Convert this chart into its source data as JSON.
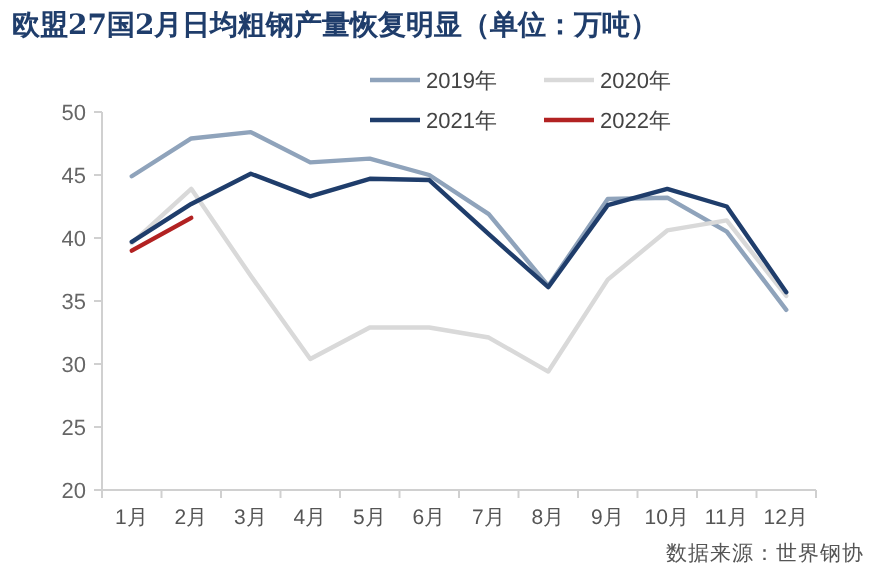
{
  "chart_data": {
    "type": "line",
    "title": "欧盟27国2月日均粗钢产量恢复明显（单位：万吨）",
    "categories": [
      "1月",
      "2月",
      "3月",
      "4月",
      "5月",
      "6月",
      "7月",
      "8月",
      "9月",
      "10月",
      "11月",
      "12月"
    ],
    "series": [
      {
        "name": "2019年",
        "color": "#8fa3bb",
        "values": [
          44.9,
          47.9,
          48.4,
          46.0,
          46.3,
          45.0,
          41.9,
          36.2,
          43.1,
          43.2,
          40.5,
          34.3
        ]
      },
      {
        "name": "2020年",
        "color": "#d9d9d9",
        "values": [
          39.6,
          43.9,
          37.0,
          30.4,
          32.9,
          32.9,
          32.1,
          29.4,
          36.7,
          40.6,
          41.4,
          35.4
        ]
      },
      {
        "name": "2021年",
        "color": "#1f3d6b",
        "values": [
          39.7,
          42.7,
          45.1,
          43.3,
          44.7,
          44.6,
          40.3,
          36.1,
          42.6,
          43.9,
          42.5,
          35.7
        ]
      },
      {
        "name": "2022年",
        "color": "#b22222",
        "values": [
          39.0,
          41.6,
          null,
          null,
          null,
          null,
          null,
          null,
          null,
          null,
          null,
          null
        ]
      }
    ],
    "ylim": [
      20,
      50
    ],
    "yticks": [
      20,
      25,
      30,
      35,
      40,
      45,
      50
    ],
    "legend": "top right",
    "annotations": [
      "数据来源：世界钢协"
    ]
  }
}
